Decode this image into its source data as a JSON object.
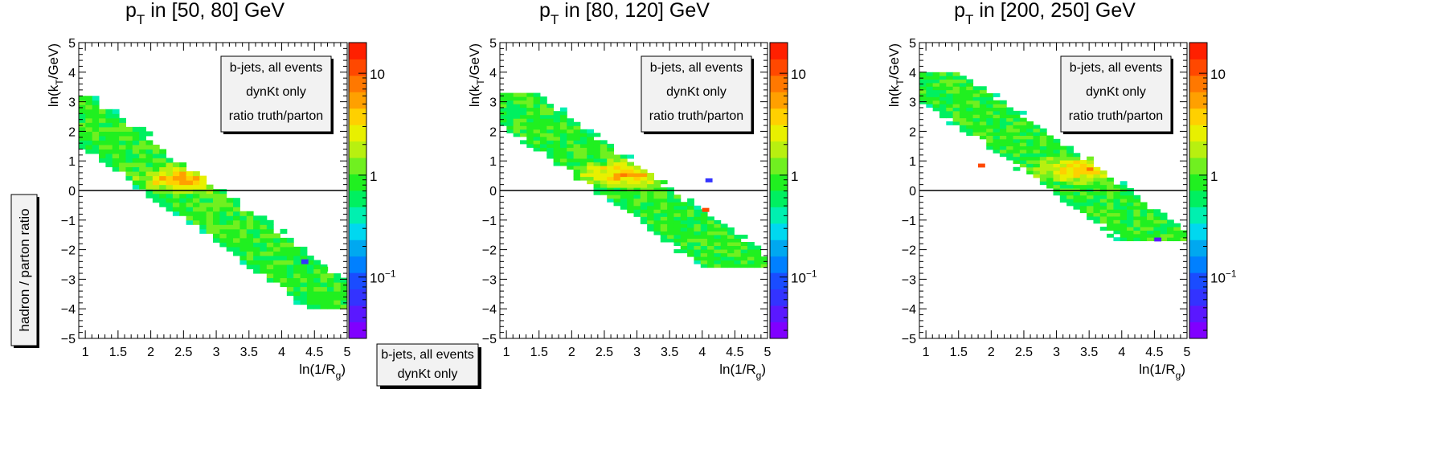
{
  "colors": {
    "frame": "#000000",
    "zero_line": "#000000",
    "box_fill": "#f2f2f2",
    "box_border": "#000000",
    "shadow": "#000000",
    "palette": [
      "#8000ff",
      "#5a18ff",
      "#3333ff",
      "#1a4cff",
      "#0080ff",
      "#00a8f0",
      "#00d8f0",
      "#00f0b0",
      "#00f060",
      "#20f020",
      "#70f020",
      "#b8f010",
      "#e8f000",
      "#ffd000",
      "#ffa000",
      "#ff7800",
      "#ff4800",
      "#ff2000"
    ]
  },
  "side_label": {
    "text": "hadron / parton ratio"
  },
  "bottom_box": {
    "lines": [
      "b-jets, all events",
      "dynKt only"
    ]
  },
  "chart_data": [
    {
      "type": "heatmap",
      "title_main": "p",
      "title_sub": "T",
      "title_rest": " in [50, 80] GeV",
      "xlabel_main": "ln(1/R",
      "xlabel_sub": "g",
      "xlabel_end": ")",
      "ylabel_main": "ln(k",
      "ylabel_sub": "T",
      "ylabel_end": "/GeV)",
      "xlim": [
        0.9,
        5.0
      ],
      "ylim": [
        -5,
        5
      ],
      "x_ticks": [
        {
          "v": 1,
          "l": "1"
        },
        {
          "v": 1.5,
          "l": "1.5"
        },
        {
          "v": 2,
          "l": "2"
        },
        {
          "v": 2.5,
          "l": "2.5"
        },
        {
          "v": 3,
          "l": "3"
        },
        {
          "v": 3.5,
          "l": "3.5"
        },
        {
          "v": 4,
          "l": "4"
        },
        {
          "v": 4.5,
          "l": "4.5"
        },
        {
          "v": 5,
          "l": "5"
        }
      ],
      "y_ticks": [
        {
          "v": 5,
          "l": "5"
        },
        {
          "v": 4,
          "l": "4"
        },
        {
          "v": 3,
          "l": "3"
        },
        {
          "v": 2,
          "l": "2"
        },
        {
          "v": 1,
          "l": "1"
        },
        {
          "v": 0,
          "l": "0"
        },
        {
          "v": -1,
          "l": "−1"
        },
        {
          "v": -2,
          "l": "−2"
        },
        {
          "v": -3,
          "l": "−3"
        },
        {
          "v": -4,
          "l": "−4"
        },
        {
          "v": -5,
          "l": "−5"
        }
      ],
      "bins": {
        "nx": 40,
        "ny": 48,
        "ymin": -4.0,
        "ymax": 3.2
      },
      "band": {
        "slope": -1.6,
        "intercept": 4.0,
        "width": 1.1,
        "x_end": 5.0,
        "hot_x": 2.5,
        "hot_y": 0.4
      },
      "outliers": [
        {
          "x": 4.65,
          "y": -2.65,
          "c": 9
        },
        {
          "x": 4.35,
          "y": -2.4,
          "c": 2
        }
      ],
      "legend_lines": [
        "b-jets, all events",
        "dynKt only",
        "ratio truth/parton"
      ],
      "colorbar": {
        "ticks": [
          {
            "v": 10,
            "l": "10"
          },
          {
            "v": 1,
            "l": "1"
          },
          {
            "v": 0.1,
            "l": "10",
            "sup": "−1"
          }
        ],
        "min": 0.025,
        "max": 20
      }
    },
    {
      "type": "heatmap",
      "title_main": "p",
      "title_sub": "T",
      "title_rest": " in [80, 120] GeV",
      "xlabel_main": "ln(1/R",
      "xlabel_sub": "g",
      "xlabel_end": ")",
      "ylabel_main": "ln(k",
      "ylabel_sub": "T",
      "ylabel_end": "/GeV)",
      "xlim": [
        0.9,
        5.0
      ],
      "ylim": [
        -5,
        5
      ],
      "x_ticks": [
        {
          "v": 1,
          "l": "1"
        },
        {
          "v": 1.5,
          "l": "1.5"
        },
        {
          "v": 2,
          "l": "2"
        },
        {
          "v": 2.5,
          "l": "2.5"
        },
        {
          "v": 3,
          "l": "3"
        },
        {
          "v": 3.5,
          "l": "3.5"
        },
        {
          "v": 4,
          "l": "4"
        },
        {
          "v": 4.5,
          "l": "4.5"
        },
        {
          "v": 5,
          "l": "5"
        }
      ],
      "y_ticks": [
        {
          "v": 5,
          "l": "5"
        },
        {
          "v": 4,
          "l": "4"
        },
        {
          "v": 3,
          "l": "3"
        },
        {
          "v": 2,
          "l": "2"
        },
        {
          "v": 1,
          "l": "1"
        },
        {
          "v": 0,
          "l": "0"
        },
        {
          "v": -1,
          "l": "−1"
        },
        {
          "v": -2,
          "l": "−2"
        },
        {
          "v": -3,
          "l": "−3"
        },
        {
          "v": -4,
          "l": "−4"
        },
        {
          "v": -5,
          "l": "−5"
        }
      ],
      "bins": {
        "nx": 40,
        "ny": 48,
        "ymin": -2.6,
        "ymax": 3.3
      },
      "band": {
        "slope": -1.55,
        "intercept": 4.6,
        "width": 1.1,
        "x_end": 5.0,
        "hot_x": 2.8,
        "hot_y": 0.55
      },
      "outliers": [
        {
          "x": 4.05,
          "y": -0.65,
          "c": 16
        },
        {
          "x": 4.1,
          "y": 0.35,
          "c": 2
        }
      ],
      "legend_lines": [
        "b-jets, all events",
        "dynKt only",
        "ratio truth/parton"
      ],
      "colorbar": {
        "ticks": [
          {
            "v": 10,
            "l": "10"
          },
          {
            "v": 1,
            "l": "1"
          },
          {
            "v": 0.1,
            "l": "10",
            "sup": "−1"
          }
        ],
        "min": 0.025,
        "max": 20
      }
    },
    {
      "type": "heatmap",
      "title_main": "p",
      "title_sub": "T",
      "title_rest": " in [200, 250] GeV",
      "xlabel_main": "ln(1/R",
      "xlabel_sub": "g",
      "xlabel_end": ")",
      "ylabel_main": "ln(k",
      "ylabel_sub": "T",
      "ylabel_end": "/GeV)",
      "xlim": [
        0.9,
        5.0
      ],
      "ylim": [
        -5,
        5
      ],
      "x_ticks": [
        {
          "v": 1,
          "l": "1"
        },
        {
          "v": 1.5,
          "l": "1.5"
        },
        {
          "v": 2,
          "l": "2"
        },
        {
          "v": 2.5,
          "l": "2.5"
        },
        {
          "v": 3,
          "l": "3"
        },
        {
          "v": 3.5,
          "l": "3.5"
        },
        {
          "v": 4,
          "l": "4"
        },
        {
          "v": 4.5,
          "l": "4.5"
        },
        {
          "v": 5,
          "l": "5"
        }
      ],
      "y_ticks": [
        {
          "v": 5,
          "l": "5"
        },
        {
          "v": 4,
          "l": "4"
        },
        {
          "v": 3,
          "l": "3"
        },
        {
          "v": 2,
          "l": "2"
        },
        {
          "v": 1,
          "l": "1"
        },
        {
          "v": 0,
          "l": "0"
        },
        {
          "v": -1,
          "l": "−1"
        },
        {
          "v": -2,
          "l": "−2"
        },
        {
          "v": -3,
          "l": "−3"
        },
        {
          "v": -4,
          "l": "−4"
        },
        {
          "v": -5,
          "l": "−5"
        }
      ],
      "bins": {
        "nx": 40,
        "ny": 48,
        "ymin": -1.7,
        "ymax": 4.0
      },
      "band": {
        "slope": -1.55,
        "intercept": 5.45,
        "width": 1.1,
        "x_end": 5.0,
        "hot_x": 3.4,
        "hot_y": 0.7
      },
      "outliers": [
        {
          "x": 1.85,
          "y": 0.85,
          "c": 16
        },
        {
          "x": 4.55,
          "y": -1.65,
          "c": 1
        }
      ],
      "legend_lines": [
        "b-jets, all events",
        "dynKt only",
        "ratio truth/parton"
      ],
      "colorbar": {
        "ticks": [
          {
            "v": 10,
            "l": "10"
          },
          {
            "v": 1,
            "l": "1"
          },
          {
            "v": 0.1,
            "l": "10",
            "sup": "−1"
          }
        ],
        "min": 0.025,
        "max": 20
      }
    }
  ]
}
